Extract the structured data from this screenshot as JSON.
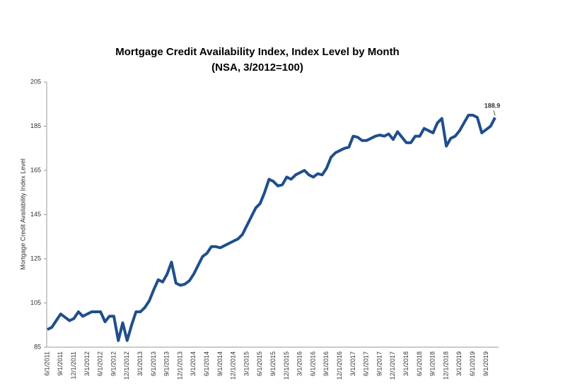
{
  "chart_data": {
    "type": "line",
    "title": "Mortgage Credit Availability Index, Index Level by Month",
    "subtitle": "(NSA, 3/2012=100)",
    "y_label": "Mortgage Credit Availability Index Level",
    "color": "#1f4e8c",
    "categories": [
      "6/1/2011",
      null,
      null,
      "9/1/2011",
      null,
      null,
      "12/1/2011",
      null,
      null,
      "3/1/2012",
      null,
      null,
      "6/1/2012",
      null,
      null,
      "9/1/2012",
      null,
      null,
      "12/1/2012",
      null,
      null,
      "3/1/2013",
      null,
      null,
      "6/1/2013",
      null,
      null,
      "9/1/2013",
      null,
      null,
      "12/1/2013",
      null,
      null,
      "3/1/2014",
      null,
      null,
      "6/1/2014",
      null,
      null,
      "9/1/2014",
      null,
      null,
      "12/1/2014",
      null,
      null,
      "3/1/2015",
      null,
      null,
      "6/1/2015",
      null,
      null,
      "9/1/2015",
      null,
      null,
      "12/1/2015",
      null,
      null,
      "3/1/2016",
      null,
      null,
      "6/1/2016",
      null,
      null,
      "9/1/2016",
      null,
      null,
      "12/1/2016",
      null,
      null,
      "3/1/2017",
      null,
      null,
      "6/1/2017",
      null,
      null,
      "9/1/2017",
      null,
      null,
      "12/1/2017",
      null,
      null,
      "3/1/2018",
      null,
      null,
      "6/1/2018",
      null,
      null,
      "9/1/2018",
      null,
      null,
      "12/1/2018",
      null,
      null,
      "3/1/2019",
      null,
      null,
      "6/1/2019",
      null,
      null,
      "9/1/2019",
      null,
      null
    ],
    "values": [
      93,
      94,
      97,
      100,
      98.5,
      97,
      98,
      101,
      99,
      100,
      101,
      101,
      101,
      96.5,
      99,
      99,
      88,
      96,
      88,
      95,
      101,
      101,
      103,
      106,
      111,
      115.5,
      114.5,
      118,
      123.5,
      114,
      113,
      113.5,
      115,
      118,
      122,
      126,
      127.5,
      130.5,
      130.5,
      130,
      131,
      132,
      133,
      134,
      136,
      140,
      144,
      148,
      150,
      155,
      161,
      160,
      158,
      158.5,
      162,
      161,
      163,
      164,
      165,
      163,
      162,
      163.5,
      163,
      166,
      171,
      173,
      174,
      175,
      175.5,
      180.5,
      180,
      178.5,
      178.5,
      179.5,
      180.5,
      181,
      180.5,
      181.5,
      179,
      182.5,
      180,
      177.5,
      177.5,
      180.5,
      180.5,
      184,
      183,
      182,
      186.5,
      188.5,
      176,
      179.5,
      180.5,
      183,
      186.5,
      190,
      190,
      189,
      182,
      183.5,
      185,
      188.9
    ],
    "ylim": [
      85,
      205
    ],
    "yticks": [
      85,
      105,
      125,
      145,
      165,
      185,
      205
    ]
  }
}
